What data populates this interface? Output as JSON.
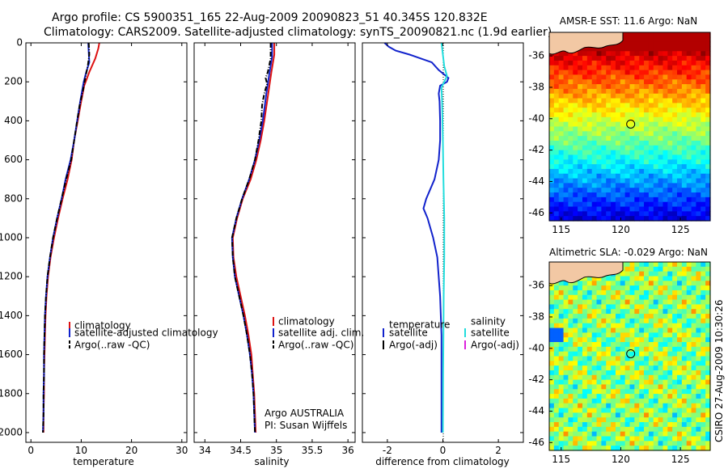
{
  "header": {
    "line1": "Argo profile: CS 5900351_165 22-Aug-2009 20090823_51 40.345S 120.832E",
    "line2": "Climatology: CARS2009. Satellite-adjusted climatology: synTS_20090821.nc (1.9d earlier)"
  },
  "side_label": "CSIRO 27-Aug-2009 10:30:26",
  "credit": {
    "line1": "Argo AUSTRALIA",
    "line2": "PI: Susan Wijffels"
  },
  "colors": {
    "climatology": "#dd1111",
    "satellite": "#1122cc",
    "argo": "#000000",
    "satellite_salinity": "#22dddd",
    "argo_salinity": "#dd22dd"
  },
  "map_data": {
    "sst": {
      "title": "AMSR-E SST: 11.6 Argo: NaN",
      "x_ticks": [
        "115",
        "120",
        "125"
      ],
      "y_ticks": [
        "-36",
        "-38",
        "-40",
        "-42",
        "-44",
        "-46"
      ],
      "xlim": [
        114,
        127.5
      ],
      "ylim": [
        -46.5,
        -34.5
      ],
      "float_position": {
        "lon": 120.832,
        "lat": -40.345
      },
      "colormap": "jet"
    },
    "sla": {
      "title": "Altimetric SLA: -0.029 Argo: NaN",
      "x_ticks": [
        "115",
        "120",
        "125"
      ],
      "y_ticks": [
        "-36",
        "-38",
        "-40",
        "-42",
        "-44",
        "-46"
      ],
      "xlim": [
        114,
        127.5
      ],
      "ylim": [
        -46.5,
        -34.5
      ],
      "float_position": {
        "lon": 120.832,
        "lat": -40.345
      },
      "colormap": "jet"
    }
  },
  "chart_data": [
    {
      "type": "line",
      "xlabel": "temperature",
      "ylabel": "",
      "xlim": [
        -1,
        31
      ],
      "ylim": [
        2050,
        0
      ],
      "x_ticks": [
        "0",
        "10",
        "20",
        "30"
      ],
      "y_ticks": [
        "0",
        "200",
        "400",
        "600",
        "800",
        "1000",
        "1200",
        "1400",
        "1600",
        "1800",
        "2000"
      ],
      "grid": false,
      "legend": {
        "placement": "lower-right",
        "entries": [
          "climatology",
          "satellite-adjusted climatology",
          "Argo(..raw -QC)"
        ]
      },
      "series": [
        {
          "name": "climatology",
          "style": "solid",
          "color_key": "climatology",
          "points": [
            [
              13.6,
              0
            ],
            [
              13.4,
              30
            ],
            [
              12.8,
              80
            ],
            [
              11.6,
              150
            ],
            [
              10.6,
              220
            ],
            [
              10.0,
              300
            ],
            [
              9.3,
              400
            ],
            [
              8.6,
              500
            ],
            [
              8.1,
              600
            ],
            [
              7.3,
              700
            ],
            [
              6.3,
              800
            ],
            [
              5.4,
              900
            ],
            [
              4.6,
              1000
            ],
            [
              3.9,
              1100
            ],
            [
              3.4,
              1200
            ],
            [
              3.1,
              1300
            ],
            [
              2.9,
              1400
            ],
            [
              2.8,
              1500
            ],
            [
              2.7,
              1600
            ],
            [
              2.6,
              1700
            ],
            [
              2.6,
              1800
            ],
            [
              2.5,
              1900
            ],
            [
              2.5,
              2000
            ]
          ]
        },
        {
          "name": "satellite-adjusted climatology",
          "style": "solid",
          "color_key": "satellite",
          "points": [
            [
              11.4,
              0
            ],
            [
              11.5,
              50
            ],
            [
              11.6,
              100
            ],
            [
              11.0,
              150
            ],
            [
              10.5,
              200
            ],
            [
              9.8,
              300
            ],
            [
              9.2,
              400
            ],
            [
              8.6,
              500
            ],
            [
              7.9,
              600
            ],
            [
              6.9,
              700
            ],
            [
              6.1,
              800
            ],
            [
              5.2,
              900
            ],
            [
              4.4,
              1000
            ],
            [
              3.8,
              1100
            ],
            [
              3.3,
              1200
            ],
            [
              3.0,
              1300
            ],
            [
              2.8,
              1400
            ],
            [
              2.7,
              1500
            ],
            [
              2.6,
              1600
            ],
            [
              2.6,
              1700
            ],
            [
              2.5,
              1800
            ],
            [
              2.5,
              1900
            ],
            [
              2.4,
              2000
            ]
          ]
        },
        {
          "name": "Argo(..raw -QC)",
          "style": "dashdot",
          "color_key": "argo",
          "points": [
            [
              11.5,
              0
            ],
            [
              11.6,
              60
            ],
            [
              11.3,
              120
            ],
            [
              10.8,
              180
            ],
            [
              10.3,
              250
            ],
            [
              9.7,
              320
            ],
            [
              9.2,
              400
            ],
            [
              8.6,
              500
            ],
            [
              8.0,
              600
            ],
            [
              7.0,
              700
            ],
            [
              6.1,
              800
            ],
            [
              5.2,
              900
            ],
            [
              4.4,
              1000
            ],
            [
              3.8,
              1100
            ],
            [
              3.3,
              1200
            ],
            [
              3.0,
              1300
            ],
            [
              2.8,
              1400
            ],
            [
              2.7,
              1500
            ],
            [
              2.6,
              1600
            ],
            [
              2.6,
              1700
            ],
            [
              2.5,
              1800
            ],
            [
              2.5,
              1900
            ],
            [
              2.4,
              2000
            ]
          ]
        }
      ]
    },
    {
      "type": "line",
      "xlabel": "salinity",
      "ylabel": "",
      "xlim": [
        33.85,
        36.1
      ],
      "ylim": [
        2050,
        0
      ],
      "x_ticks": [
        "34",
        "34.5",
        "35",
        "35.5",
        "36"
      ],
      "grid": false,
      "legend": {
        "placement": "lower-right",
        "entries": [
          "climatology",
          "satellite adj. clim.",
          "Argo(..raw -QC)"
        ]
      },
      "series": [
        {
          "name": "climatology",
          "style": "solid",
          "color_key": "climatology",
          "points": [
            [
              34.97,
              0
            ],
            [
              34.97,
              60
            ],
            [
              34.93,
              150
            ],
            [
              34.89,
              250
            ],
            [
              34.83,
              400
            ],
            [
              34.78,
              500
            ],
            [
              34.72,
              600
            ],
            [
              34.64,
              700
            ],
            [
              34.53,
              800
            ],
            [
              34.45,
              900
            ],
            [
              34.39,
              1000
            ],
            [
              34.4,
              1100
            ],
            [
              34.44,
              1200
            ],
            [
              34.5,
              1300
            ],
            [
              34.56,
              1400
            ],
            [
              34.61,
              1500
            ],
            [
              34.65,
              1600
            ],
            [
              34.67,
              1700
            ],
            [
              34.69,
              1800
            ],
            [
              34.7,
              1900
            ],
            [
              34.71,
              2000
            ]
          ]
        },
        {
          "name": "satellite adj. clim.",
          "style": "solid",
          "color_key": "satellite",
          "points": [
            [
              34.94,
              0
            ],
            [
              34.94,
              70
            ],
            [
              34.9,
              160
            ],
            [
              34.86,
              260
            ],
            [
              34.81,
              400
            ],
            [
              34.76,
              500
            ],
            [
              34.7,
              600
            ],
            [
              34.62,
              700
            ],
            [
              34.52,
              800
            ],
            [
              34.44,
              900
            ],
            [
              34.38,
              1000
            ],
            [
              34.39,
              1100
            ],
            [
              34.42,
              1200
            ],
            [
              34.48,
              1300
            ],
            [
              34.54,
              1400
            ],
            [
              34.59,
              1500
            ],
            [
              34.63,
              1600
            ],
            [
              34.66,
              1700
            ],
            [
              34.68,
              1800
            ],
            [
              34.69,
              1900
            ],
            [
              34.7,
              2000
            ]
          ]
        },
        {
          "name": "Argo(..raw -QC)",
          "style": "dashdot",
          "color_key": "argo",
          "points": [
            [
              34.92,
              0
            ],
            [
              34.92,
              80
            ],
            [
              34.88,
              150
            ],
            [
              34.85,
              180
            ],
            [
              34.87,
              210
            ],
            [
              34.83,
              260
            ],
            [
              34.8,
              320
            ],
            [
              34.79,
              400
            ],
            [
              34.75,
              500
            ],
            [
              34.7,
              600
            ],
            [
              34.62,
              700
            ],
            [
              34.52,
              800
            ],
            [
              34.44,
              900
            ],
            [
              34.38,
              1000
            ],
            [
              34.39,
              1100
            ],
            [
              34.42,
              1200
            ],
            [
              34.48,
              1300
            ],
            [
              34.54,
              1400
            ],
            [
              34.59,
              1500
            ],
            [
              34.63,
              1600
            ],
            [
              34.66,
              1700
            ],
            [
              34.68,
              1800
            ],
            [
              34.69,
              1900
            ],
            [
              34.7,
              2000
            ]
          ]
        }
      ]
    },
    {
      "type": "line",
      "xlabel": "difference from climatology",
      "ylabel": "",
      "xlim": [
        -2.9,
        2.9
      ],
      "ylim": [
        2050,
        0
      ],
      "x_ticks": [
        "-2",
        "0",
        "2"
      ],
      "grid": false,
      "zero_line": true,
      "legend": {
        "placement": "lower-center",
        "columns": [
          {
            "heading": "temperature",
            "entries": [
              "satellite",
              "Argo(-adj)"
            ]
          },
          {
            "heading": "salinity",
            "entries": [
              "satellite",
              "Argo(-adj)"
            ]
          }
        ]
      },
      "series": [
        {
          "name": "satellite",
          "variable": "temperature",
          "style": "solid",
          "color_key": "satellite",
          "points": [
            [
              -2.1,
              0
            ],
            [
              -1.95,
              20
            ],
            [
              -1.7,
              40
            ],
            [
              -1.2,
              60
            ],
            [
              -0.8,
              80
            ],
            [
              -0.4,
              100
            ],
            [
              -0.15,
              140
            ],
            [
              0.2,
              180
            ],
            [
              0.15,
              200
            ],
            [
              -0.1,
              220
            ],
            [
              -0.15,
              260
            ],
            [
              -0.12,
              300
            ],
            [
              -0.1,
              400
            ],
            [
              -0.1,
              500
            ],
            [
              -0.15,
              600
            ],
            [
              -0.3,
              700
            ],
            [
              -0.6,
              800
            ],
            [
              -0.7,
              850
            ],
            [
              -0.55,
              900
            ],
            [
              -0.35,
              1000
            ],
            [
              -0.2,
              1100
            ],
            [
              -0.1,
              1300
            ],
            [
              -0.05,
              1500
            ],
            [
              -0.05,
              1700
            ],
            [
              -0.05,
              2000
            ]
          ]
        },
        {
          "name": "satellite",
          "variable": "salinity",
          "style": "solid",
          "color_key": "satellite_salinity",
          "points": [
            [
              -0.05,
              0
            ],
            [
              0.0,
              60
            ],
            [
              0.05,
              120
            ],
            [
              0.15,
              170
            ],
            [
              0.05,
              200
            ],
            [
              -0.05,
              230
            ],
            [
              -0.03,
              300
            ],
            [
              0.0,
              500
            ],
            [
              0.02,
              700
            ],
            [
              0.05,
              900
            ],
            [
              0.05,
              1100
            ],
            [
              0.03,
              1300
            ],
            [
              0.02,
              1500
            ],
            [
              0.01,
              1700
            ],
            [
              0.0,
              2000
            ]
          ]
        }
      ]
    }
  ]
}
